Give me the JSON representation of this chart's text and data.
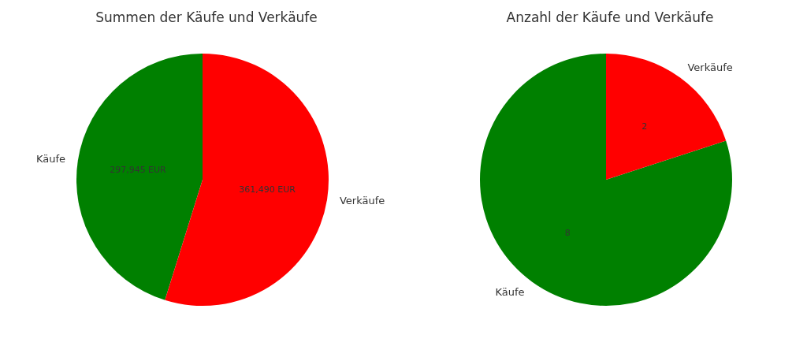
{
  "chart_data": [
    {
      "type": "pie",
      "title": "Summen der Käufe und Verkäufe",
      "categories": [
        "Käufe",
        "Verkäufe"
      ],
      "values": [
        297945,
        361490
      ],
      "colors": [
        "#008000",
        "#ff0000"
      ],
      "value_labels": [
        "297,945 EUR",
        "361,490 EUR"
      ]
    },
    {
      "type": "pie",
      "title": "Anzahl der Käufe und Verkäufe",
      "categories": [
        "Käufe",
        "Verkäufe"
      ],
      "values": [
        8,
        2
      ],
      "colors": [
        "#008000",
        "#ff0000"
      ],
      "data_labels": true
    }
  ]
}
